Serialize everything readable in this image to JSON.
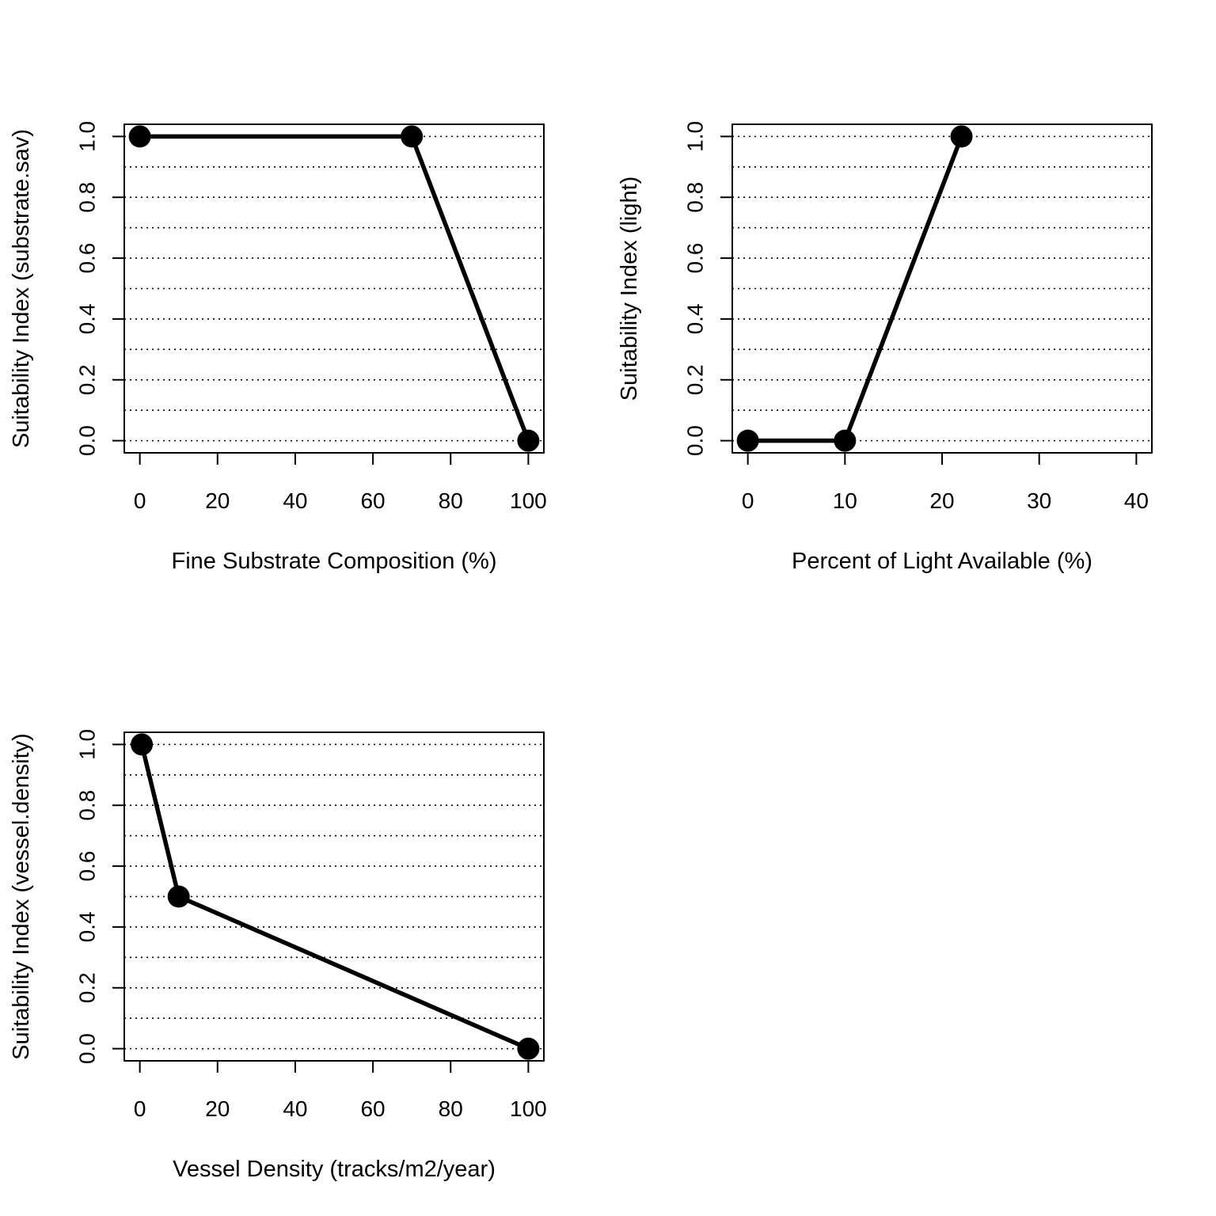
{
  "chart_data": [
    {
      "type": "line",
      "title": "",
      "xlabel": "Fine Substrate Composition (%)",
      "ylabel": "Suitability Index (substrate.sav)",
      "x": [
        0,
        70,
        100
      ],
      "y": [
        1.0,
        1.0,
        0.0
      ],
      "xlim": [
        -4,
        104
      ],
      "ylim": [
        -0.04,
        1.04
      ],
      "xticks": [
        0,
        20,
        40,
        60,
        80,
        100
      ],
      "yticks": [
        0.0,
        0.2,
        0.4,
        0.6,
        0.8,
        1.0
      ],
      "ytick_labels": [
        "0.0",
        "0.2",
        "0.4",
        "0.6",
        "0.8",
        "1.0"
      ],
      "gridlines_y": [
        0.0,
        0.1,
        0.2,
        0.3,
        0.4,
        0.5,
        0.6,
        0.7,
        0.8,
        0.9,
        1.0
      ],
      "grid": "horizontal dotted",
      "line_color": "#000000",
      "marker_color": "#000000"
    },
    {
      "type": "line",
      "title": "",
      "xlabel": "Percent of Light Available (%)",
      "ylabel": "Suitability Index (light)",
      "x": [
        0,
        10,
        22
      ],
      "y": [
        0.0,
        0.0,
        1.0
      ],
      "xlim": [
        -1.6,
        41.6
      ],
      "ylim": [
        -0.04,
        1.04
      ],
      "xticks": [
        0,
        10,
        20,
        30,
        40
      ],
      "yticks": [
        0.0,
        0.2,
        0.4,
        0.6,
        0.8,
        1.0
      ],
      "ytick_labels": [
        "0.0",
        "0.2",
        "0.4",
        "0.6",
        "0.8",
        "1.0"
      ],
      "gridlines_y": [
        0.0,
        0.1,
        0.2,
        0.3,
        0.4,
        0.5,
        0.6,
        0.7,
        0.8,
        0.9,
        1.0
      ],
      "grid": "horizontal dotted",
      "line_color": "#000000",
      "marker_color": "#000000"
    },
    {
      "type": "line",
      "title": "",
      "xlabel": "Vessel Density (tracks/m2/year)",
      "ylabel": "Suitability Index (vessel.density)",
      "x": [
        0.5,
        10,
        100
      ],
      "y": [
        1.0,
        0.5,
        0.0
      ],
      "xlim": [
        -4,
        104
      ],
      "ylim": [
        -0.04,
        1.04
      ],
      "xticks": [
        0,
        20,
        40,
        60,
        80,
        100
      ],
      "yticks": [
        0.0,
        0.2,
        0.4,
        0.6,
        0.8,
        1.0
      ],
      "ytick_labels": [
        "0.0",
        "0.2",
        "0.4",
        "0.6",
        "0.8",
        "1.0"
      ],
      "gridlines_y": [
        0.0,
        0.1,
        0.2,
        0.3,
        0.4,
        0.5,
        0.6,
        0.7,
        0.8,
        0.9,
        1.0
      ],
      "grid": "horizontal dotted",
      "line_color": "#000000",
      "marker_color": "#000000"
    }
  ]
}
